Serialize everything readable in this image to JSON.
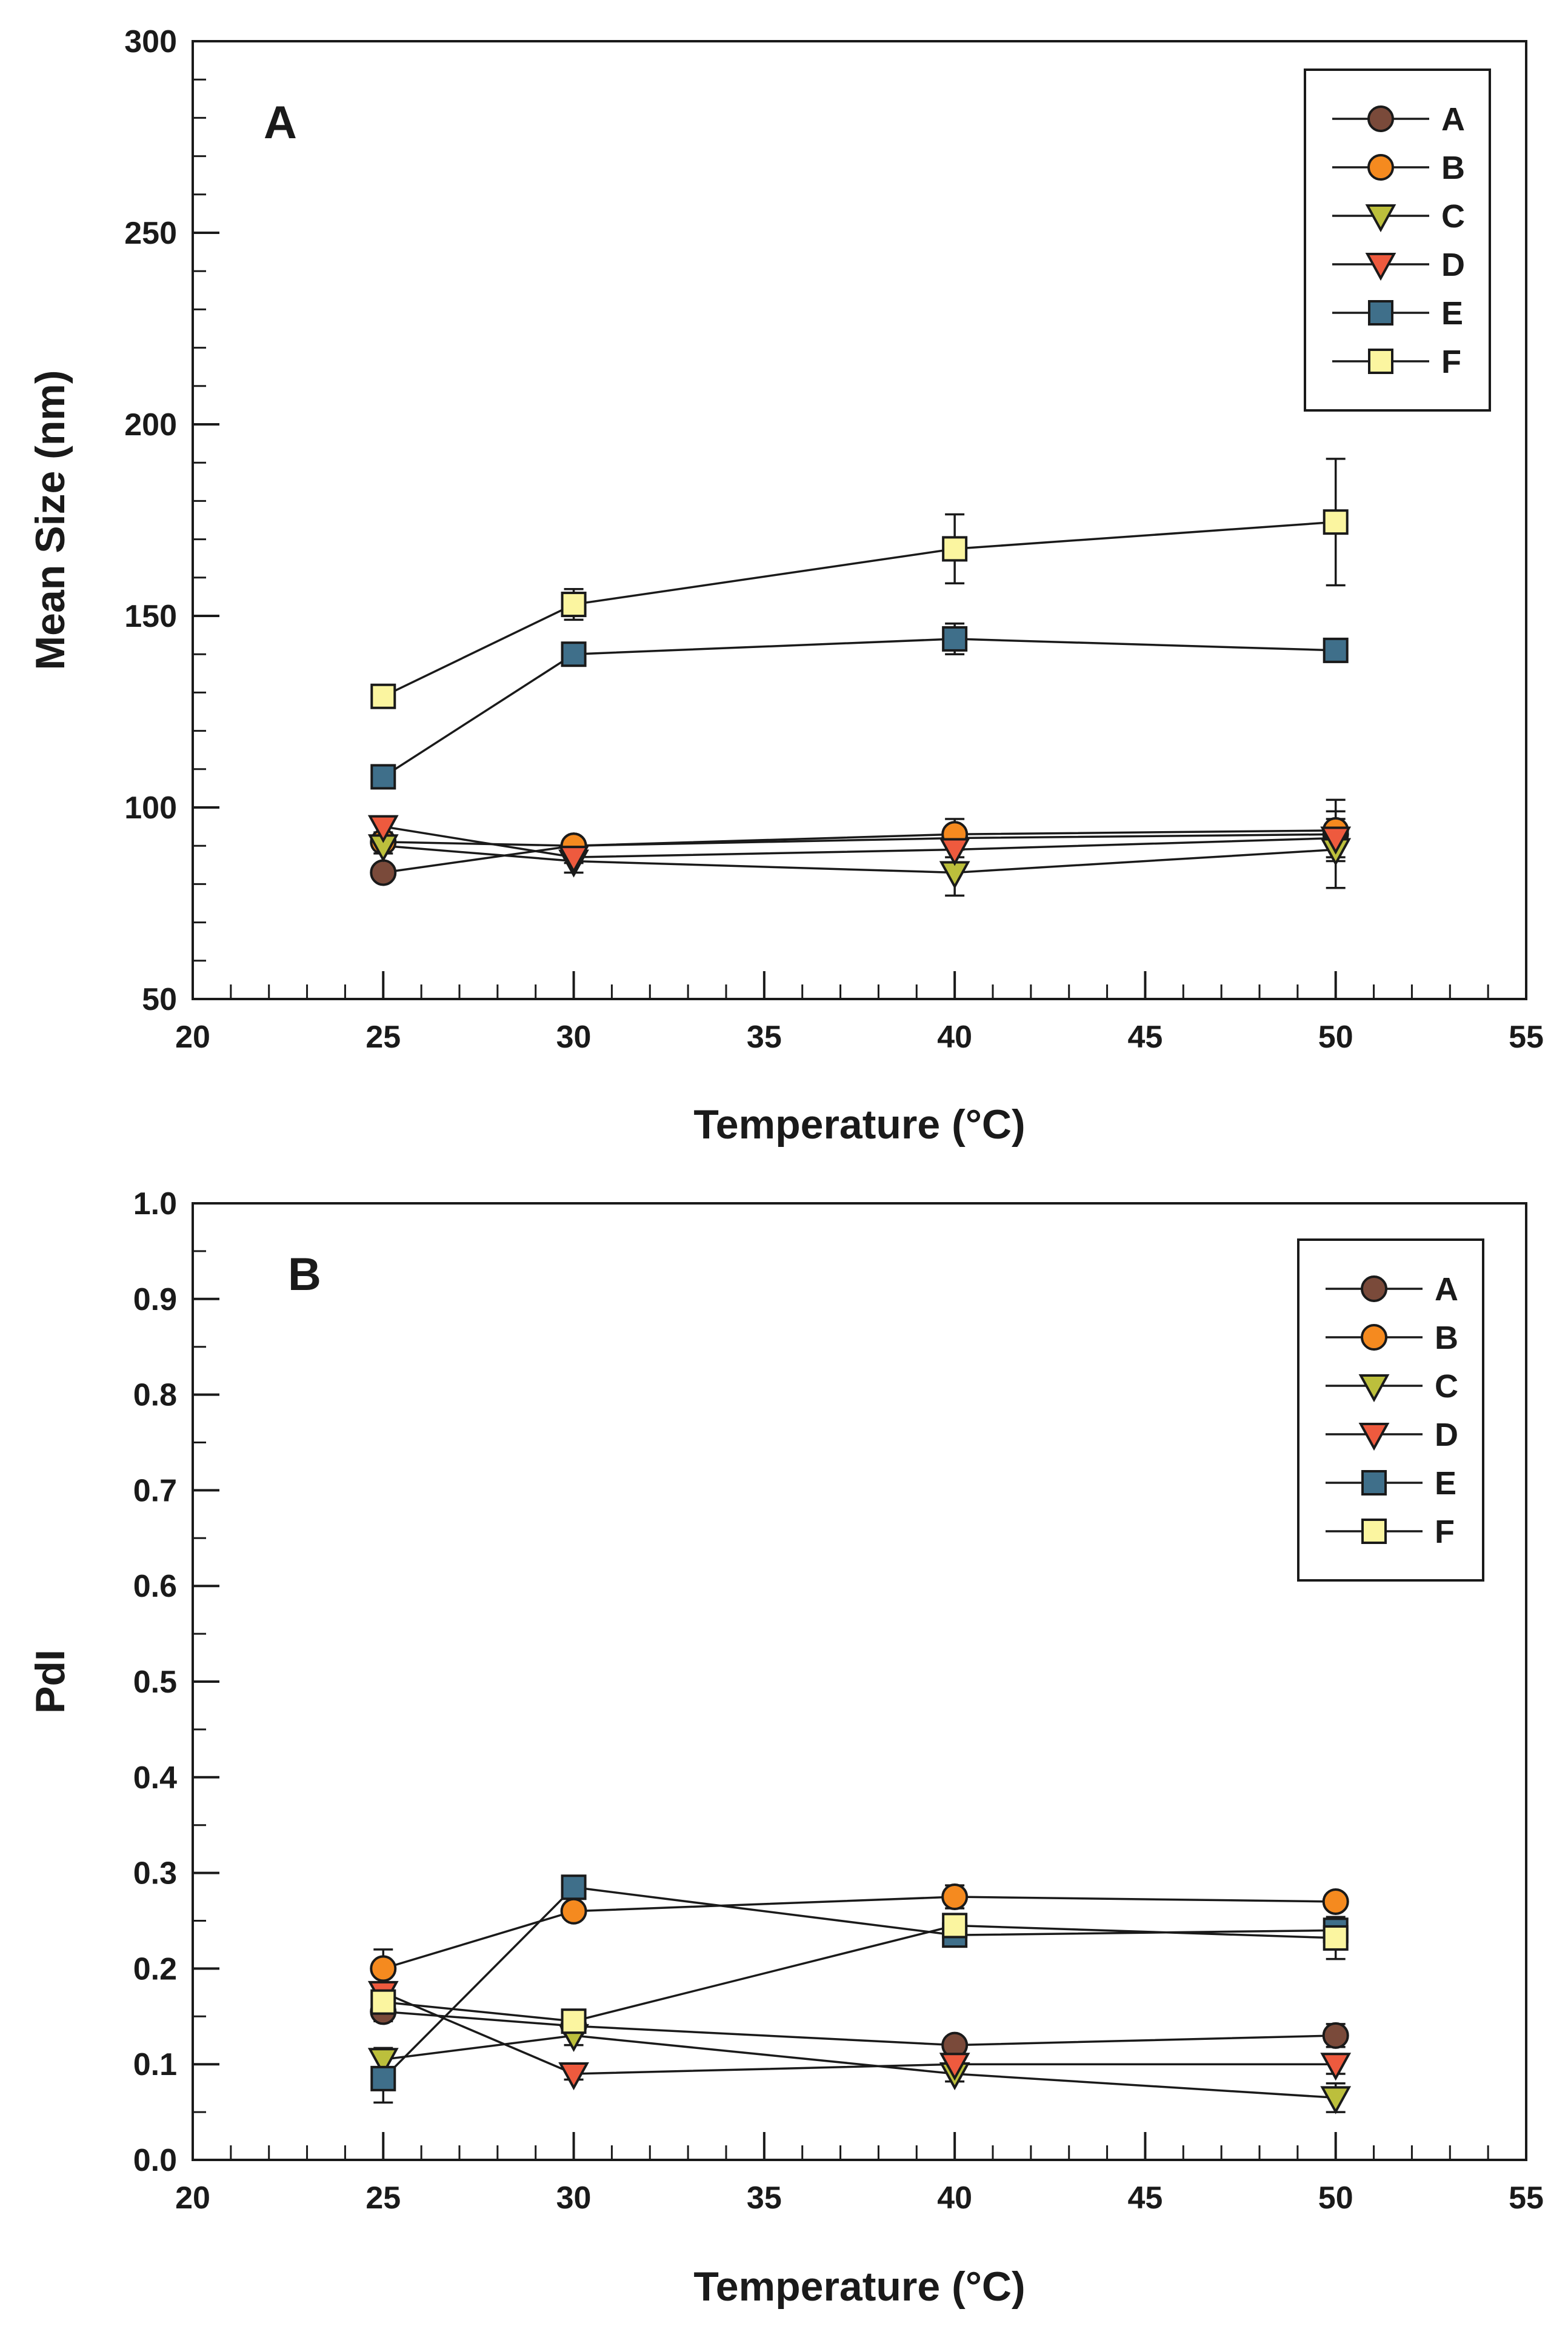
{
  "chart_data": [
    {
      "type": "line",
      "panel_label": "A",
      "title": "",
      "xlabel": "Temperature (°C)",
      "ylabel": "Mean Size (nm)",
      "xlim": [
        20,
        55
      ],
      "ylim": [
        50,
        300
      ],
      "xticks": [
        20,
        25,
        30,
        35,
        40,
        45,
        50,
        55
      ],
      "yticks": [
        50,
        100,
        150,
        200,
        250,
        300
      ],
      "x_tick_labels": [
        "20",
        "25",
        "30",
        "35",
        "40",
        "45",
        "50",
        "55"
      ],
      "y_tick_labels": [
        "50",
        "100",
        "150",
        "200",
        "250",
        "300"
      ],
      "legend_position": "top-right",
      "x": [
        25,
        30,
        40,
        50
      ],
      "series": [
        {
          "name": "A",
          "marker": "circle",
          "color": "#7a4a3a",
          "values": [
            83,
            90,
            92,
            93
          ],
          "errors": [
            1.5,
            1.5,
            2,
            2
          ]
        },
        {
          "name": "B",
          "marker": "circle",
          "color": "#f58a1f",
          "values": [
            91,
            90,
            93,
            94
          ],
          "errors": [
            1.5,
            2,
            4,
            8
          ]
        },
        {
          "name": "C",
          "marker": "triangle-down",
          "color": "#bcbf3c",
          "values": [
            90,
            86,
            83,
            89
          ],
          "errors": [
            2,
            3,
            6,
            10
          ]
        },
        {
          "name": "D",
          "marker": "triangle-down",
          "color": "#ee5a3e",
          "values": [
            95,
            87,
            89,
            92
          ],
          "errors": [
            1.5,
            1.5,
            2,
            5
          ]
        },
        {
          "name": "E",
          "marker": "square",
          "color": "#3f6f8a",
          "values": [
            108,
            140,
            144,
            141
          ],
          "errors": [
            1.5,
            2,
            4,
            3
          ]
        },
        {
          "name": "F",
          "marker": "square",
          "color": "#fbf5a0",
          "values": [
            129,
            153,
            167.5,
            174.5
          ],
          "errors": [
            2,
            4,
            9,
            16.5
          ]
        }
      ]
    },
    {
      "type": "line",
      "panel_label": "B",
      "title": "",
      "xlabel": "Temperature (°C)",
      "ylabel": "PdI",
      "xlim": [
        20,
        55
      ],
      "ylim": [
        0,
        1
      ],
      "xticks": [
        20,
        25,
        30,
        35,
        40,
        45,
        50,
        55
      ],
      "yticks": [
        0,
        0.1,
        0.2,
        0.3,
        0.4,
        0.5,
        0.6,
        0.7,
        0.8,
        0.9,
        1
      ],
      "x_tick_labels": [
        "20",
        "25",
        "30",
        "35",
        "40",
        "45",
        "50",
        "55"
      ],
      "y_tick_labels": [
        "0.0",
        "0.1",
        "0.2",
        "0.3",
        "0.4",
        "0.5",
        "0.6",
        "0.7",
        "0.8",
        "0.9",
        "1.0"
      ],
      "legend_position": "top-right",
      "x": [
        25,
        30,
        40,
        50
      ],
      "series": [
        {
          "name": "A",
          "marker": "circle",
          "color": "#7a4a3a",
          "values": [
            0.155,
            0.14,
            0.12,
            0.13
          ],
          "errors": [
            0.01,
            0.008,
            0.008,
            0.012
          ]
        },
        {
          "name": "B",
          "marker": "circle",
          "color": "#f58a1f",
          "values": [
            0.2,
            0.26,
            0.275,
            0.27
          ],
          "errors": [
            0.02,
            0.008,
            0.012,
            0.008
          ]
        },
        {
          "name": "C",
          "marker": "triangle-down",
          "color": "#bcbf3c",
          "values": [
            0.105,
            0.13,
            0.09,
            0.065
          ],
          "errors": [
            0.012,
            0.01,
            0.008,
            0.015
          ]
        },
        {
          "name": "D",
          "marker": "triangle-down",
          "color": "#ee5a3e",
          "values": [
            0.175,
            0.09,
            0.1,
            0.1
          ],
          "errors": [
            0.01,
            0.006,
            0.008,
            0.01
          ]
        },
        {
          "name": "E",
          "marker": "square",
          "color": "#3f6f8a",
          "values": [
            0.085,
            0.285,
            0.235,
            0.24
          ],
          "errors": [
            0.025,
            0.008,
            0.008,
            0.01
          ]
        },
        {
          "name": "F",
          "marker": "square",
          "color": "#fbf5a0",
          "values": [
            0.165,
            0.145,
            0.245,
            0.232
          ],
          "errors": [
            0.015,
            0.01,
            0.008,
            0.022
          ]
        }
      ]
    }
  ]
}
